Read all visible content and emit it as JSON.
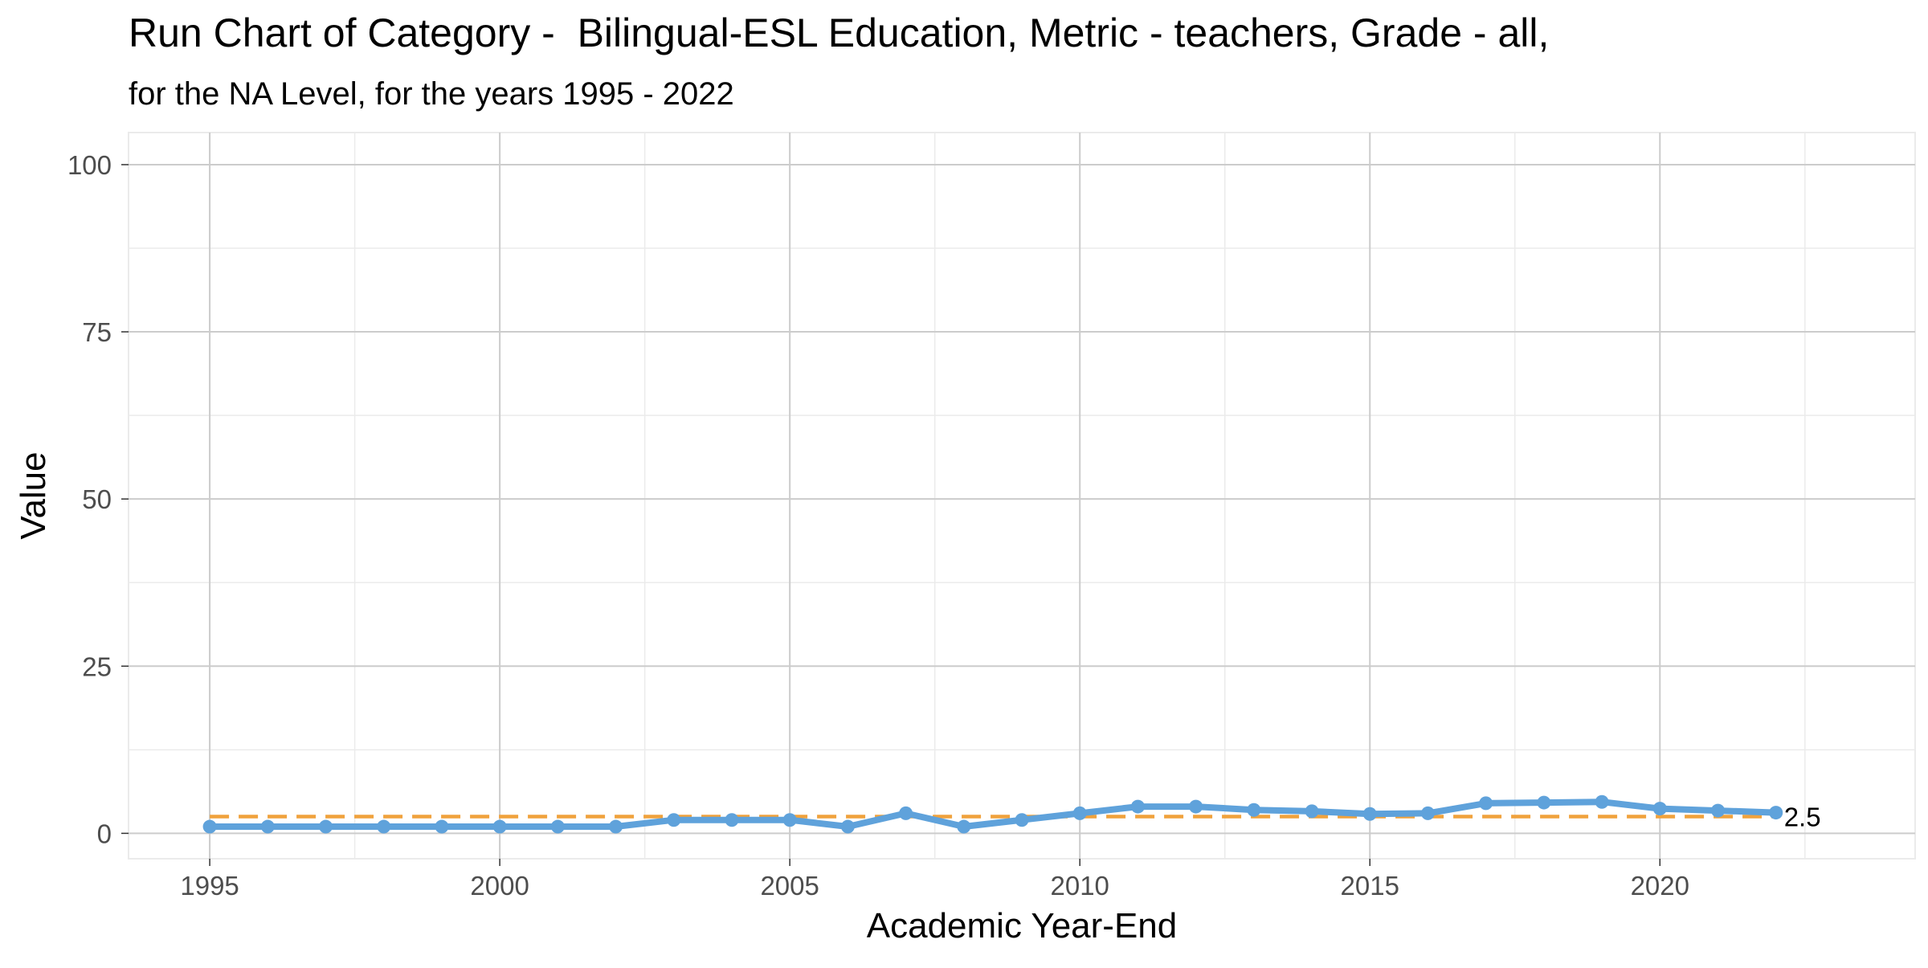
{
  "chart_data": {
    "type": "line",
    "title": "Run Chart of Category -  Bilingual-ESL Education, Metric - teachers, Grade - all,",
    "subtitle": "for the NA Level, for the years 1995 - 2022",
    "xlabel": "Academic Year-End",
    "ylabel": "Value",
    "xlim": [
      1993.6,
      2024.4
    ],
    "ylim": [
      -3.8,
      104.8
    ],
    "x_ticks": [
      1995,
      2000,
      2005,
      2010,
      2015,
      2020
    ],
    "y_ticks": [
      0,
      25,
      50,
      75,
      100
    ],
    "grid": true,
    "legend": "none",
    "x": [
      1995,
      1996,
      1997,
      1998,
      1999,
      2000,
      2001,
      2002,
      2003,
      2004,
      2005,
      2006,
      2007,
      2008,
      2009,
      2010,
      2011,
      2012,
      2013,
      2014,
      2015,
      2016,
      2017,
      2018,
      2019,
      2020,
      2021,
      2022
    ],
    "series": [
      {
        "values": [
          1.0,
          1.0,
          1.0,
          1.0,
          1.0,
          1.0,
          1.0,
          1.0,
          2.0,
          2.0,
          2.0,
          1.0,
          3.0,
          1.0,
          2.0,
          3.0,
          4.0,
          4.0,
          3.5,
          3.3,
          2.9,
          3.0,
          4.5,
          4.6,
          4.7,
          3.7,
          3.4,
          3.1
        ],
        "color": "#5fa2db"
      }
    ],
    "reference_line": {
      "value": 2.5,
      "label": "2.5",
      "color": "#f0a23c",
      "style": "dashed"
    }
  }
}
